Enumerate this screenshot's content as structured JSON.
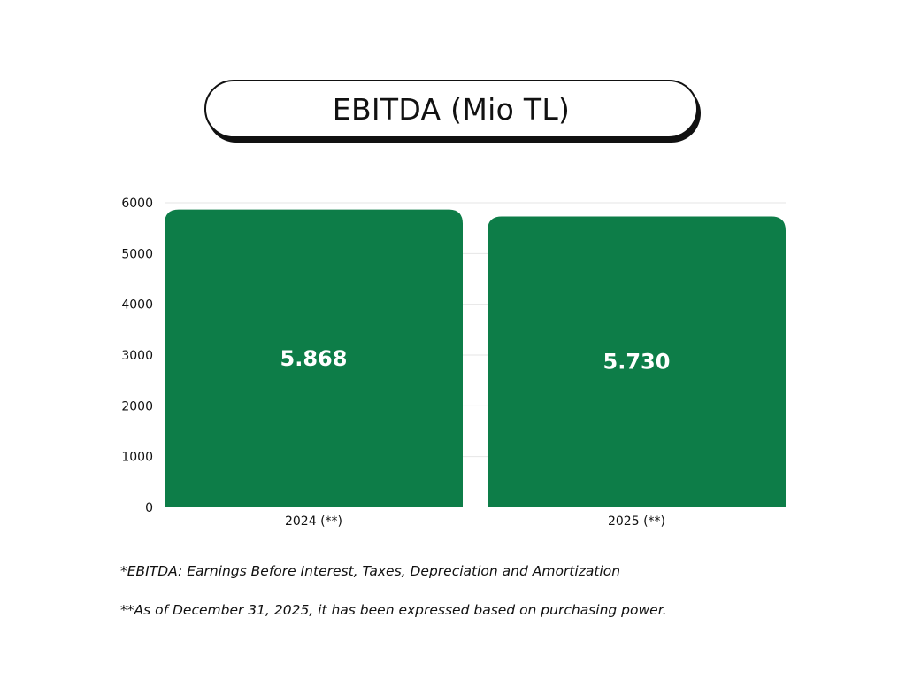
{
  "colors": {
    "bar": "#0d7d48",
    "grid": "#e6e6e6",
    "text": "#111111",
    "label": "#ffffff"
  },
  "chart_data": {
    "type": "bar",
    "title": "EBITDA (Mio TL)",
    "categories": [
      "2024 (**)",
      "2025 (**)"
    ],
    "values": [
      5868,
      5730
    ],
    "data_labels": [
      "5.868",
      "5.730"
    ],
    "ylim": [
      0,
      6000
    ],
    "yticks": [
      0,
      1000,
      2000,
      3000,
      4000,
      5000,
      6000
    ],
    "ytick_labels": [
      "0",
      "1000",
      "2000",
      "3000",
      "4000",
      "5000",
      "6000"
    ],
    "grid": true,
    "xlabel": "",
    "ylabel": ""
  },
  "footnotes": [
    "*EBITDA: Earnings Before Interest, Taxes, Depreciation and Amortization",
    "**As of December 31, 2025, it has been expressed based on purchasing power."
  ]
}
